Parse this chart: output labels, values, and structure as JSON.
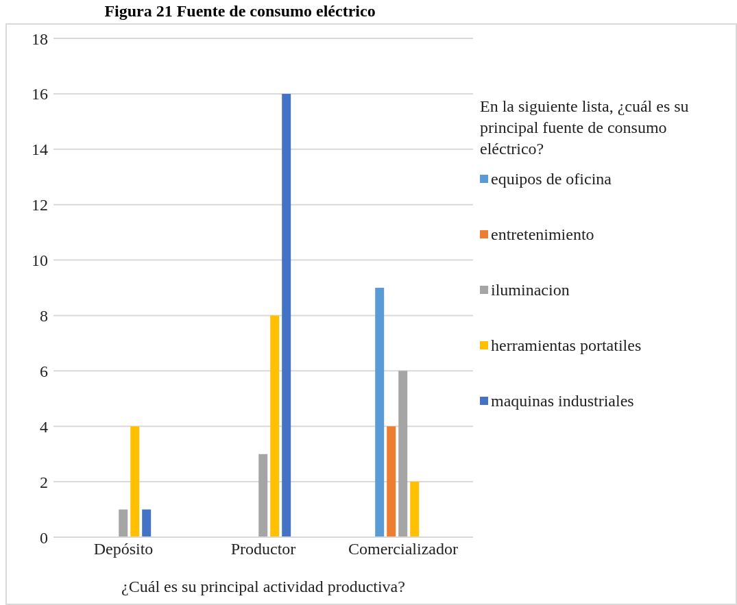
{
  "chart_data": {
    "type": "bar",
    "title": "Figura 21 Fuente de consumo eléctrico",
    "xlabel": "¿Cuál es su principal actividad productiva?",
    "legend_title": "En la siguiente lista, ¿cuál es su principal fuente de consumo eléctrico?",
    "categories": [
      "Depósito",
      "Productor",
      "Comercializador"
    ],
    "series": [
      {
        "name": "equipos de oficina",
        "color": "#5b9bd5",
        "values": [
          0,
          0,
          9
        ]
      },
      {
        "name": "entretenimiento",
        "color": "#ed7d31",
        "values": [
          0,
          0,
          4
        ]
      },
      {
        "name": "iluminacion",
        "color": "#a5a5a5",
        "values": [
          1,
          3,
          6
        ]
      },
      {
        "name": "herramientas portatiles",
        "color": "#ffc000",
        "values": [
          4,
          8,
          2
        ]
      },
      {
        "name": "maquinas industriales",
        "color": "#4472c4",
        "values": [
          1,
          16,
          0
        ]
      }
    ],
    "ylim": [
      0,
      18
    ],
    "yticks": [
      0,
      2,
      4,
      6,
      8,
      10,
      12,
      14,
      16,
      18
    ],
    "grid": "y",
    "legend": "right"
  }
}
